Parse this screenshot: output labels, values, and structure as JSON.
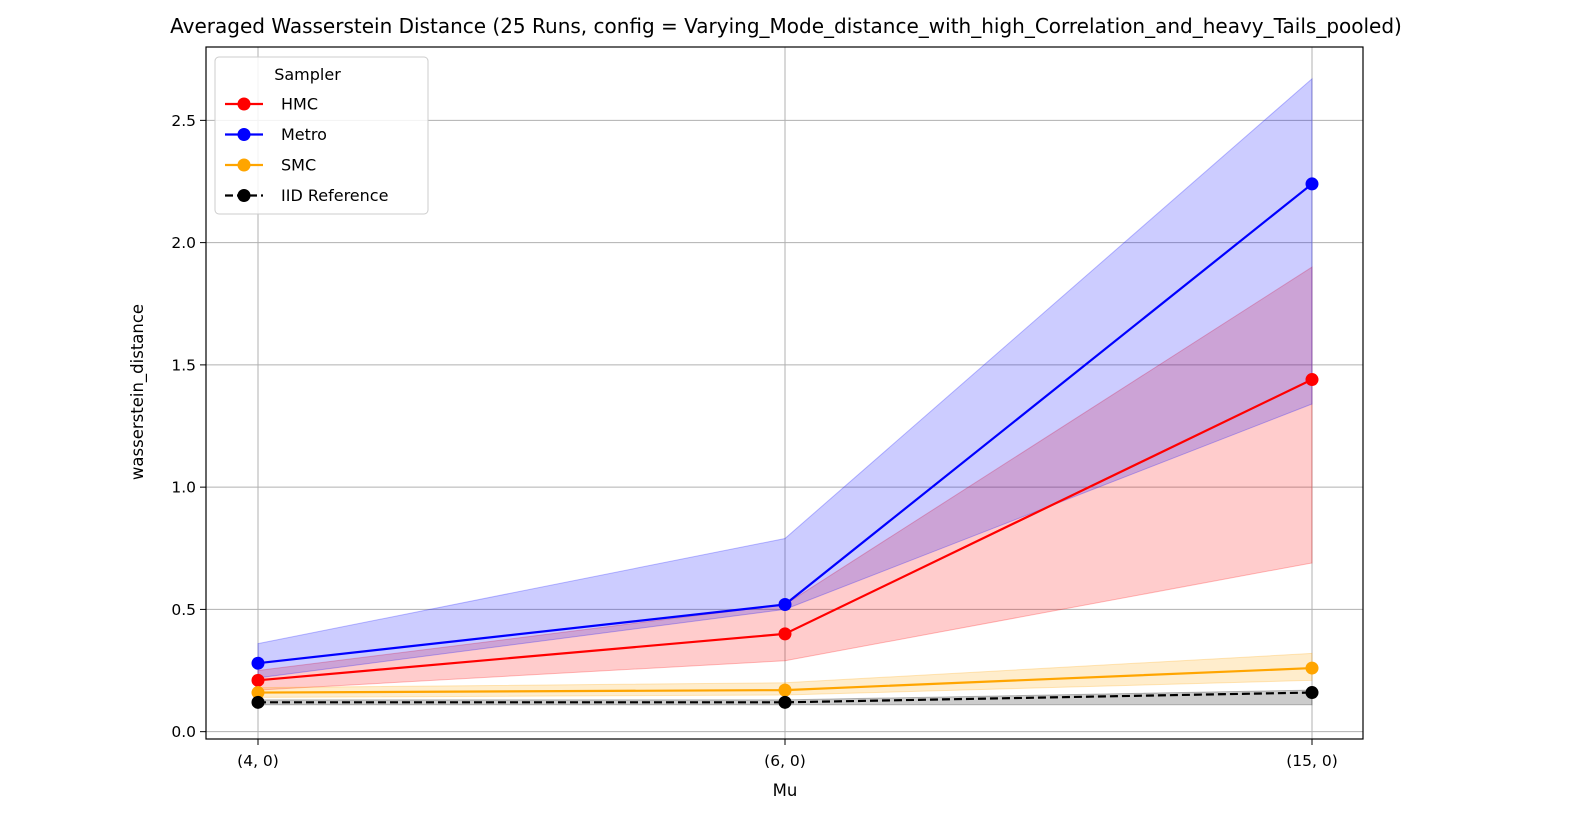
{
  "chart_data": {
    "type": "line",
    "title": "Averaged Wasserstein Distance (25 Runs, config = Varying_Mode_distance_with_high_Correlation_and_heavy_Tails_pooled)",
    "xlabel": "Mu",
    "ylabel": "wasserstein_distance",
    "categories": [
      "(4, 0)",
      "(6, 0)",
      "(15, 0)"
    ],
    "ylim": [
      -0.03,
      2.8
    ],
    "yticks": [
      "0.0",
      "0.5",
      "1.0",
      "1.5",
      "2.0",
      "2.5"
    ],
    "grid": true,
    "legend": {
      "title": "Sampler",
      "position": "top-left"
    },
    "series": [
      {
        "name": "HMC",
        "color": "#ff0000",
        "dashed": false,
        "values": [
          0.21,
          0.4,
          1.44
        ],
        "band_lower": [
          0.17,
          0.29,
          0.69
        ],
        "band_upper": [
          0.25,
          0.52,
          1.9
        ]
      },
      {
        "name": "Metro",
        "color": "#0000ff",
        "dashed": false,
        "values": [
          0.28,
          0.52,
          2.24
        ],
        "band_lower": [
          0.22,
          0.5,
          1.34
        ],
        "band_upper": [
          0.36,
          0.79,
          2.67
        ]
      },
      {
        "name": "SMC",
        "color": "#ffa500",
        "dashed": false,
        "values": [
          0.16,
          0.17,
          0.26
        ],
        "band_lower": [
          0.14,
          0.15,
          0.21
        ],
        "band_upper": [
          0.18,
          0.2,
          0.32
        ]
      },
      {
        "name": "IID Reference",
        "color": "#000000",
        "dashed": true,
        "values": [
          0.12,
          0.12,
          0.16
        ],
        "band_lower": [
          0.11,
          0.11,
          0.11
        ],
        "band_upper": [
          0.13,
          0.13,
          0.17
        ]
      }
    ]
  }
}
